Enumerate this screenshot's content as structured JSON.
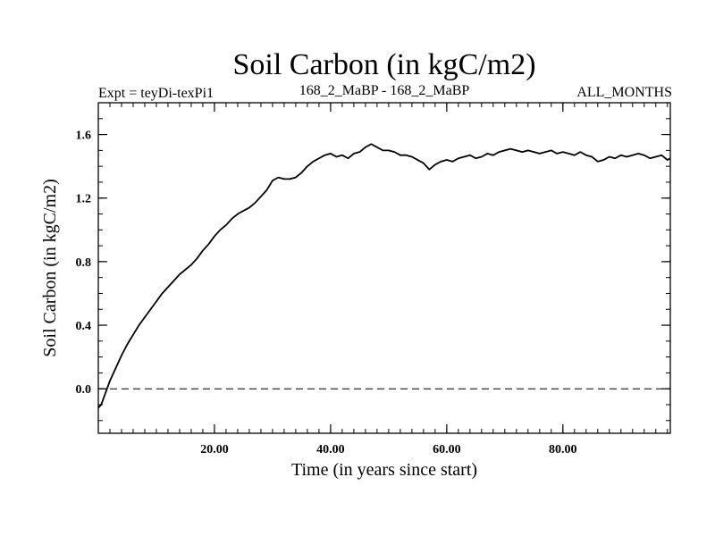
{
  "chart_data": {
    "type": "line",
    "title": "Soil Carbon (in kgC/m2)",
    "subtitle_left": "Expt = teyDi-texPi1",
    "subtitle_center": "168_2_MaBP - 168_2_MaBP",
    "subtitle_right": "ALL_MONTHS",
    "xlabel": "Time (in years since start)",
    "ylabel": "Soil Carbon (in kgC/m2)",
    "xlim": [
      0,
      98.5
    ],
    "ylim": [
      -0.28,
      1.8
    ],
    "x_ticks": [
      {
        "value": 20,
        "label": "20.00"
      },
      {
        "value": 40,
        "label": "40.00"
      },
      {
        "value": 60,
        "label": "60.00"
      },
      {
        "value": 80,
        "label": "80.00"
      }
    ],
    "y_ticks": [
      {
        "value": 0.0,
        "label": "0.0"
      },
      {
        "value": 0.4,
        "label": "0.4"
      },
      {
        "value": 0.8,
        "label": "0.8"
      },
      {
        "value": 1.2,
        "label": "1.2"
      },
      {
        "value": 1.6,
        "label": "1.6"
      }
    ],
    "zero_line": true,
    "series": [
      {
        "name": "Soil Carbon",
        "color": "#000000",
        "x": [
          0,
          0.5,
          1,
          1.5,
          2,
          3,
          4,
          5,
          6,
          7,
          8,
          9,
          10,
          11,
          12,
          13,
          14,
          15,
          16,
          17,
          18,
          19,
          20,
          21,
          22,
          23,
          24,
          25,
          26,
          27,
          28,
          29,
          30,
          31,
          32,
          33,
          34,
          35,
          36,
          37,
          38,
          39,
          40,
          41,
          42,
          43,
          44,
          45,
          46,
          47,
          48,
          49,
          50,
          51,
          52,
          53,
          54,
          55,
          56,
          57,
          58,
          59,
          60,
          61,
          62,
          63,
          64,
          65,
          66,
          67,
          68,
          69,
          70,
          71,
          72,
          73,
          74,
          75,
          76,
          77,
          78,
          79,
          80,
          81,
          82,
          83,
          84,
          85,
          86,
          87,
          88,
          89,
          90,
          91,
          92,
          93,
          94,
          95,
          96,
          97,
          98,
          98.5
        ],
        "values": [
          -0.12,
          -0.1,
          -0.05,
          0.0,
          0.05,
          0.13,
          0.21,
          0.28,
          0.34,
          0.4,
          0.45,
          0.5,
          0.55,
          0.6,
          0.64,
          0.68,
          0.72,
          0.75,
          0.78,
          0.82,
          0.87,
          0.91,
          0.96,
          1.0,
          1.03,
          1.07,
          1.1,
          1.12,
          1.14,
          1.17,
          1.21,
          1.25,
          1.31,
          1.33,
          1.32,
          1.32,
          1.33,
          1.36,
          1.4,
          1.43,
          1.45,
          1.47,
          1.48,
          1.46,
          1.47,
          1.45,
          1.48,
          1.49,
          1.52,
          1.54,
          1.52,
          1.5,
          1.5,
          1.49,
          1.47,
          1.47,
          1.46,
          1.44,
          1.42,
          1.38,
          1.41,
          1.43,
          1.44,
          1.43,
          1.45,
          1.46,
          1.47,
          1.45,
          1.46,
          1.48,
          1.47,
          1.49,
          1.5,
          1.51,
          1.5,
          1.49,
          1.5,
          1.49,
          1.48,
          1.49,
          1.5,
          1.48,
          1.49,
          1.48,
          1.47,
          1.49,
          1.47,
          1.46,
          1.43,
          1.44,
          1.46,
          1.45,
          1.47,
          1.46,
          1.47,
          1.48,
          1.47,
          1.45,
          1.46,
          1.47,
          1.44,
          1.45
        ]
      }
    ]
  }
}
